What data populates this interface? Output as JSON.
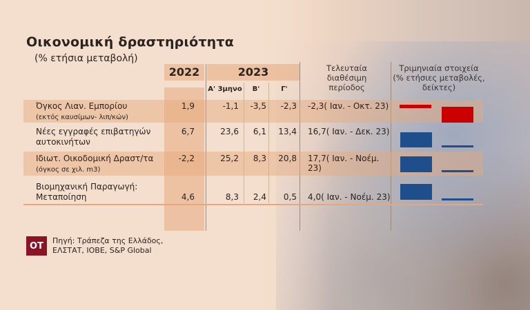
{
  "title": "Οικονομική δραστηριότητα",
  "subtitle": "(% ετήσια μεταβολή)",
  "headers": {
    "y2022": "2022",
    "y2023": "2023",
    "q1": "Α' 3μηνο",
    "q2": "Β'",
    "q3": "Γ'",
    "last_period": [
      "Τελευταία",
      "διαθέσιμη",
      "περίοδος"
    ],
    "quarterly": [
      "Τριμηνιαία στοιχεία",
      "(% ετήσιες μεταβολές,",
      "δείκτες)"
    ]
  },
  "rows": [
    {
      "label": "Όγκος Λιαν. Εμπορίου",
      "sublabel": "(εκτός καυσίμων- λιπ/κών)",
      "y2022": "1,9",
      "q1": "-1,1",
      "q2": "-3,5",
      "q3": "-2,3",
      "last": "-2,3( Ιαν. - Οκτ. 23)"
    },
    {
      "label": "Νέες εγγραφές επιβατηγών",
      "sublabel": "αυτοκινήτων",
      "y2022": "6,7",
      "q1": "23,6",
      "q2": "6,1",
      "q3": "13,4",
      "last": "16,7( Ιαν. - Δεκ. 23)"
    },
    {
      "label": "Ιδιωτ. Οικοδομική Δραστ/τα",
      "sublabel": "(όγκος σε χιλ. m3)",
      "y2022": "-2,2",
      "q1": "25,2",
      "q2": "8,3",
      "q3": "20,8",
      "last": "17,7( Ιαν. - Νοέμ. 23)"
    },
    {
      "label": "Βιομηχανική Παραγωγή:",
      "sublabel": "Μεταποίηση",
      "y2022": "4,6",
      "q1": "8,3",
      "q2": "2,4",
      "q3": "0,5",
      "last": "4,0( Ιαν. - Νοέμ. 23)"
    }
  ],
  "colors": {
    "negative": "#cc0000",
    "positive": "#1f4e8c",
    "logo": "#8a1426"
  },
  "logo": "ΟΤ",
  "source": [
    "Πηγή: Τράπεζα της Ελλάδος,",
    "ΕΛΣΤΑΤ, ΙΟΒΕ, S&P Global"
  ]
}
